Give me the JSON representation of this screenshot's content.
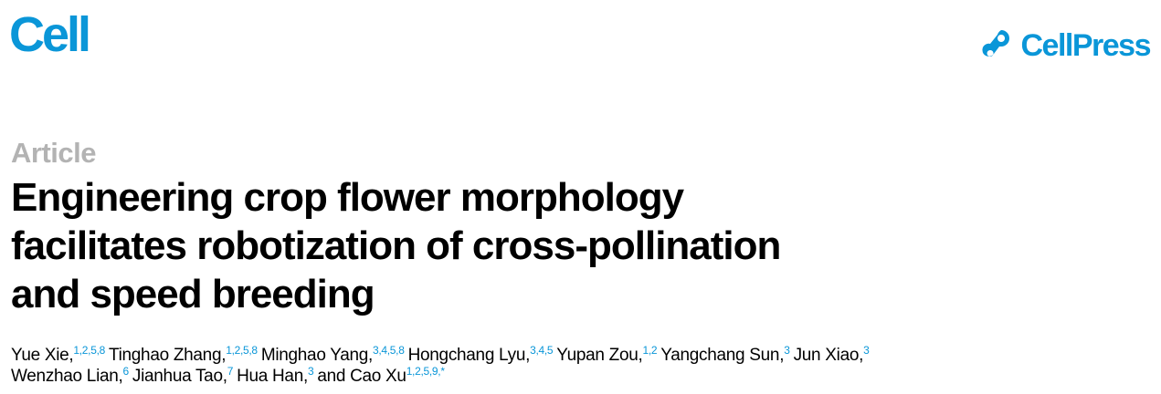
{
  "header": {
    "journal": "Cell",
    "publisher": "CellPress",
    "brand_color": "#0a96d8",
    "publisher_icon": "cellpress-logo-icon"
  },
  "article": {
    "type": "Article",
    "title_lines": [
      "Engineering crop flower morphology",
      "facilitates robotization of cross-pollination",
      "and speed breeding"
    ],
    "author_lines": [
      [
        {
          "name": "Yue Xie,",
          "aff": "1,2,5,8"
        },
        {
          "name": "Tinghao Zhang,",
          "aff": "1,2,5,8"
        },
        {
          "name": "Minghao Yang,",
          "aff": "3,4,5,8"
        },
        {
          "name": "Hongchang Lyu,",
          "aff": "3,4,5"
        },
        {
          "name": "Yupan Zou,",
          "aff": "1,2"
        },
        {
          "name": "Yangchang Sun,",
          "aff": "3"
        },
        {
          "name": "Jun Xiao,",
          "aff": "3"
        }
      ],
      [
        {
          "name": "Wenzhao Lian,",
          "aff": "6"
        },
        {
          "name": "Jianhua Tao,",
          "aff": "7"
        },
        {
          "name": "Hua Han,",
          "aff": "3"
        },
        {
          "name": "and Cao Xu",
          "aff": "1,2,5,9,*"
        }
      ]
    ]
  }
}
